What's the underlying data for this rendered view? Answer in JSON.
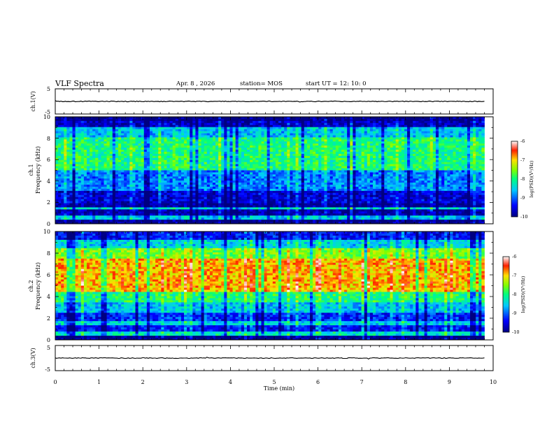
{
  "header": {
    "title": "VLF Spectra",
    "date": "Apr. 8 , 2026",
    "station": "station= MOS",
    "start": "start  UT =   12: 10: 0"
  },
  "chart_data": [
    {
      "type": "line",
      "name": "ch1-voltage",
      "ylabel": "ch.1(V)",
      "ylim": [
        -5,
        5
      ],
      "yticks": [
        "5",
        "-5"
      ],
      "xlim": [
        0,
        10
      ],
      "baseline_value": 0,
      "description_values": "flat trace near 0 V with small occasional spikes"
    },
    {
      "type": "heatmap",
      "name": "ch1-spectrogram",
      "ylabel": "ch.1\nFrequency (kHz)",
      "ylabel_lines": [
        "ch.1",
        "Frequency (kHz)"
      ],
      "ylim": [
        0,
        10
      ],
      "yticks": [
        "0",
        "2",
        "4",
        "6",
        "8",
        "10"
      ],
      "xlim": [
        0,
        10
      ],
      "colorbar": {
        "label": "log(PSD)(V²/Hz)",
        "ticks": [
          "-6",
          "-7",
          "-8",
          "-9",
          "-10"
        ],
        "range": [
          -10,
          -6
        ]
      },
      "band_levels_by_kHz": {
        "0.0-0.3": -10,
        "0.3-0.7": -8.6,
        "0.7-1.3": -9.8,
        "1.3-1.6": -8.4,
        "1.6-1.9": -9.9,
        "1.9-3.0": -9.6,
        "3.0-5.0": -8.9,
        "5.0-8.0": -8.0,
        "8.0-9.0": -8.6,
        "9.0-9.6": -9.7,
        "9.6-10.0": -10
      }
    },
    {
      "type": "heatmap",
      "name": "ch2-spectrogram",
      "ylabel": "ch.2\nFrequency (kHz)",
      "ylabel_lines": [
        "ch.2",
        "Frequency (kHz)"
      ],
      "ylim": [
        0,
        10
      ],
      "yticks": [
        "0",
        "2",
        "4",
        "6",
        "8",
        "10"
      ],
      "xlim": [
        0,
        10
      ],
      "colorbar": {
        "label": "log(PSD)(V²/Hz)",
        "ticks": [
          "-6",
          "-7",
          "-8",
          "-9",
          "-10"
        ],
        "range": [
          -10,
          -6
        ]
      },
      "band_levels_by_kHz": {
        "0.0-0.3": -10,
        "0.3-0.8": -8.3,
        "0.8-1.3": -9.4,
        "1.3-1.8": -8.5,
        "1.8-2.5": -9.3,
        "2.5-3.5": -8.6,
        "3.5-4.5": -8.0,
        "4.5-7.5": -6.9,
        "7.5-8.5": -7.6,
        "8.5-9.3": -8.5,
        "9.3-10.0": -9.4
      }
    },
    {
      "type": "line",
      "name": "ch3-voltage",
      "ylabel": "ch.3(V)",
      "ylim": [
        -5,
        5
      ],
      "yticks": [
        "5",
        "-5"
      ],
      "xlim": [
        0,
        10
      ],
      "baseline_value": 0,
      "description_values": "flat trace near 0 V with small noise"
    }
  ],
  "xaxis": {
    "label": "Time (min)",
    "ticks": [
      "0",
      "1",
      "2",
      "3",
      "4",
      "5",
      "6",
      "7",
      "8",
      "9",
      "10"
    ],
    "data_end_min": 9.8
  }
}
